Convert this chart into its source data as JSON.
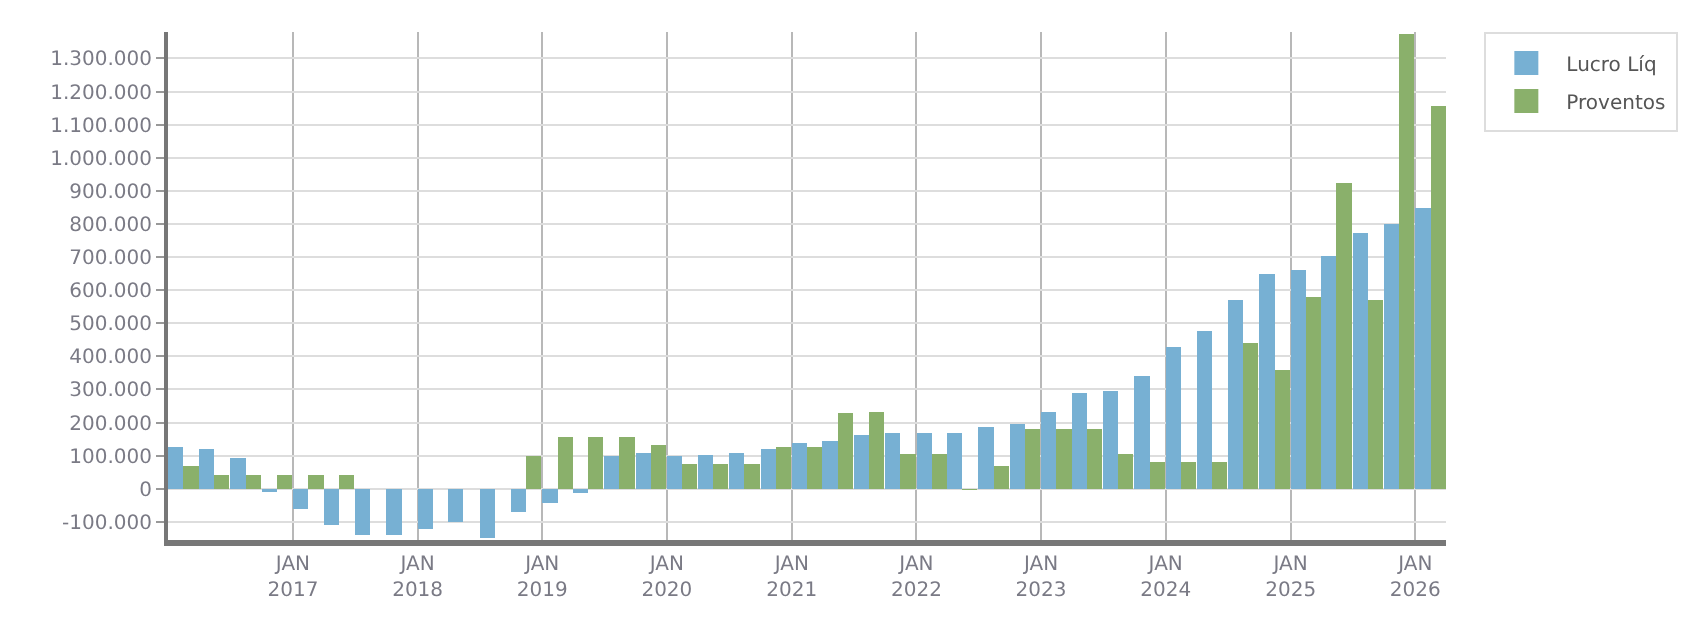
{
  "chart_data": {
    "type": "bar",
    "x": [
      "2016-02-15",
      "2016-05-15",
      "2016-08-15",
      "2016-11-15",
      "2017-02-15",
      "2017-05-15",
      "2017-08-15",
      "2017-11-15",
      "2018-02-15",
      "2018-05-15",
      "2018-08-15",
      "2018-11-15",
      "2019-02-15",
      "2019-05-15",
      "2019-08-15",
      "2019-11-15",
      "2020-02-15",
      "2020-05-15",
      "2020-08-15",
      "2020-11-15",
      "2021-02-15",
      "2021-05-15",
      "2021-08-15",
      "2021-11-15",
      "2022-02-15",
      "2022-05-15",
      "2022-08-15",
      "2022-11-15",
      "2023-02-15",
      "2023-05-15",
      "2023-08-15",
      "2023-11-15",
      "2024-02-15",
      "2024-05-15",
      "2024-08-15",
      "2024-11-15",
      "2025-02-15",
      "2025-05-15",
      "2025-08-15",
      "2025-11-15",
      "2026-02-15"
    ],
    "series": [
      {
        "name": "Lucro Líq",
        "color": "#77b0d3",
        "values": [
          126000,
          121000,
          92000,
          -10000,
          -60000,
          -111000,
          -140000,
          -140000,
          -123000,
          -100000,
          -150000,
          -70000,
          -42000,
          -13000,
          100000,
          109000,
          98000,
          103000,
          108000,
          120000,
          138000,
          145000,
          162000,
          168000,
          168000,
          168000,
          186000,
          197000,
          232000,
          290000,
          296000,
          342000,
          429000,
          476000,
          569000,
          650000,
          661000,
          702000,
          772000,
          800000,
          847000
        ]
      },
      {
        "name": "Proventos",
        "color": "#8ab06b",
        "values": [
          70000,
          42000,
          42000,
          42000,
          42000,
          42000,
          0,
          0,
          0,
          0,
          0,
          100000,
          155000,
          155000,
          155000,
          132000,
          75000,
          75000,
          75000,
          127000,
          127000,
          230000,
          232000,
          104000,
          104000,
          -3000,
          70000,
          180000,
          180000,
          180000,
          104000,
          81000,
          81000,
          81000,
          441000,
          360000,
          580000,
          925000,
          569000,
          1373000,
          1156000
        ]
      }
    ],
    "xlim": [
      "2016-01-01",
      "2026-04-01"
    ],
    "xticks": [
      {
        "value": "2017-01-01",
        "label": "JAN\n2017"
      },
      {
        "value": "2018-01-01",
        "label": "JAN\n2018"
      },
      {
        "value": "2019-01-01",
        "label": "JAN\n2019"
      },
      {
        "value": "2020-01-01",
        "label": "JAN\n2020"
      },
      {
        "value": "2021-01-01",
        "label": "JAN\n2021"
      },
      {
        "value": "2022-01-01",
        "label": "JAN\n2022"
      },
      {
        "value": "2023-01-01",
        "label": "JAN\n2023"
      },
      {
        "value": "2024-01-01",
        "label": "JAN\n2024"
      },
      {
        "value": "2025-01-01",
        "label": "JAN\n2025"
      },
      {
        "value": "2026-01-01",
        "label": "JAN\n2026"
      }
    ],
    "ylim": [
      -155000,
      1380000
    ],
    "yticks": [
      {
        "value": -100000,
        "label": "-100.000"
      },
      0,
      {
        "value": 100000,
        "label": "100.000"
      },
      {
        "value": 200000,
        "label": "200.000"
      },
      {
        "value": 300000,
        "label": "300.000"
      },
      {
        "value": 400000,
        "label": "400.000"
      },
      {
        "value": 500000,
        "label": "500.000"
      },
      {
        "value": 600000,
        "label": "600.000"
      },
      {
        "value": 700000,
        "label": "700.000"
      },
      {
        "value": 800000,
        "label": "800.000"
      },
      {
        "value": 900000,
        "label": "900.000"
      },
      {
        "value": 1000000,
        "label": "1.000.000"
      },
      {
        "value": 1100000,
        "label": "1.100.000"
      },
      {
        "value": 1200000,
        "label": "1.200.000"
      },
      {
        "value": 1300000,
        "label": "1.300.000"
      }
    ],
    "grid": true,
    "legend": "top right"
  }
}
